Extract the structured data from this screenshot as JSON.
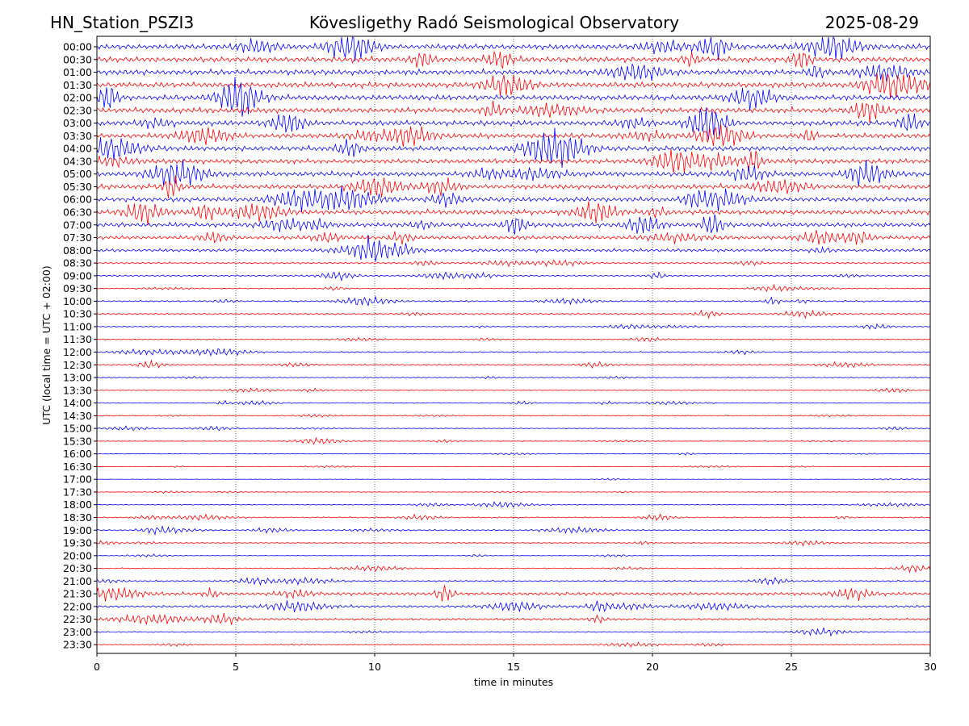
{
  "header": {
    "station": "HN_Station_PSZI3",
    "observatory": "Kövesligethy Radó Seismological Observatory",
    "date": "2025-08-29"
  },
  "chart_data": {
    "type": "line",
    "title": "Kövesligethy Radó Seismological Observatory",
    "xlabel": "time in minutes",
    "ylabel": "UTC (local time = UTC + 02:00)",
    "xlim": [
      0,
      30
    ],
    "xticks": [
      0,
      5,
      10,
      15,
      20,
      25,
      30
    ],
    "grid": "vertical dotted lines at 5-minute ticks",
    "trace_colors": [
      "#0000ff",
      "#ff0000"
    ],
    "rows": [
      {
        "label": "00:00",
        "amp": 1.0
      },
      {
        "label": "00:30",
        "amp": 1.0
      },
      {
        "label": "01:00",
        "amp": 1.0
      },
      {
        "label": "01:30",
        "amp": 1.0
      },
      {
        "label": "02:00",
        "amp": 1.0
      },
      {
        "label": "02:30",
        "amp": 1.0
      },
      {
        "label": "03:00",
        "amp": 0.95
      },
      {
        "label": "03:30",
        "amp": 0.9
      },
      {
        "label": "04:00",
        "amp": 0.9
      },
      {
        "label": "04:30",
        "amp": 0.9
      },
      {
        "label": "05:00",
        "amp": 0.9
      },
      {
        "label": "05:30",
        "amp": 0.9
      },
      {
        "label": "06:00",
        "amp": 0.9
      },
      {
        "label": "06:30",
        "amp": 0.9
      },
      {
        "label": "07:00",
        "amp": 0.85
      },
      {
        "label": "07:30",
        "amp": 0.75
      },
      {
        "label": "08:00",
        "amp": 0.6
      },
      {
        "label": "08:30",
        "amp": 0.3
      },
      {
        "label": "09:00",
        "amp": 0.3
      },
      {
        "label": "09:30",
        "amp": 0.2
      },
      {
        "label": "10:00",
        "amp": 0.3
      },
      {
        "label": "10:30",
        "amp": 0.3
      },
      {
        "label": "11:00",
        "amp": 0.2
      },
      {
        "label": "11:30",
        "amp": 0.2
      },
      {
        "label": "12:00",
        "amp": 0.25
      },
      {
        "label": "12:30",
        "amp": 0.25
      },
      {
        "label": "13:00",
        "amp": 0.18
      },
      {
        "label": "13:30",
        "amp": 0.12
      },
      {
        "label": "14:00",
        "amp": 0.15
      },
      {
        "label": "14:30",
        "amp": 0.15
      },
      {
        "label": "15:00",
        "amp": 0.15
      },
      {
        "label": "15:30",
        "amp": 0.12
      },
      {
        "label": "16:00",
        "amp": 0.1
      },
      {
        "label": "16:30",
        "amp": 0.08
      },
      {
        "label": "17:00",
        "amp": 0.08
      },
      {
        "label": "17:30",
        "amp": 0.12
      },
      {
        "label": "18:00",
        "amp": 0.15
      },
      {
        "label": "18:30",
        "amp": 0.25
      },
      {
        "label": "19:00",
        "amp": 0.25
      },
      {
        "label": "19:30",
        "amp": 0.2
      },
      {
        "label": "20:00",
        "amp": 0.1
      },
      {
        "label": "20:30",
        "amp": 0.2
      },
      {
        "label": "21:00",
        "amp": 0.3
      },
      {
        "label": "21:30",
        "amp": 0.6
      },
      {
        "label": "22:00",
        "amp": 0.45
      },
      {
        "label": "22:30",
        "amp": 0.4
      },
      {
        "label": "23:00",
        "amp": 0.2
      },
      {
        "label": "23:30",
        "amp": 0.15
      }
    ]
  }
}
